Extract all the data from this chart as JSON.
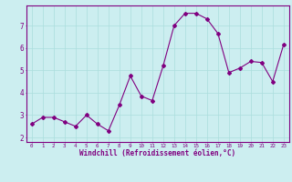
{
  "x": [
    0,
    1,
    2,
    3,
    4,
    5,
    6,
    7,
    8,
    9,
    10,
    11,
    12,
    13,
    14,
    15,
    16,
    17,
    18,
    19,
    20,
    21,
    22,
    23
  ],
  "y": [
    2.6,
    2.9,
    2.9,
    2.7,
    2.5,
    3.0,
    2.6,
    2.3,
    3.45,
    4.75,
    3.85,
    3.65,
    5.2,
    7.0,
    7.55,
    7.55,
    7.3,
    6.65,
    4.9,
    5.1,
    5.4,
    5.35,
    4.5,
    6.15
  ],
  "line_color": "#800080",
  "marker": "D",
  "marker_size": 2.0,
  "bg_color": "#cceef0",
  "grid_color": "#aadddd",
  "xlabel": "Windchill (Refroidissement éolien,°C)",
  "xlabel_color": "#800080",
  "tick_color": "#800080",
  "spine_color": "#800080",
  "xlim": [
    -0.5,
    23.5
  ],
  "ylim": [
    1.8,
    7.9
  ],
  "yticks": [
    2,
    3,
    4,
    5,
    6,
    7
  ],
  "xticks": [
    0,
    1,
    2,
    3,
    4,
    5,
    6,
    7,
    8,
    9,
    10,
    11,
    12,
    13,
    14,
    15,
    16,
    17,
    18,
    19,
    20,
    21,
    22,
    23
  ],
  "figsize": [
    3.2,
    2.0
  ],
  "dpi": 100
}
